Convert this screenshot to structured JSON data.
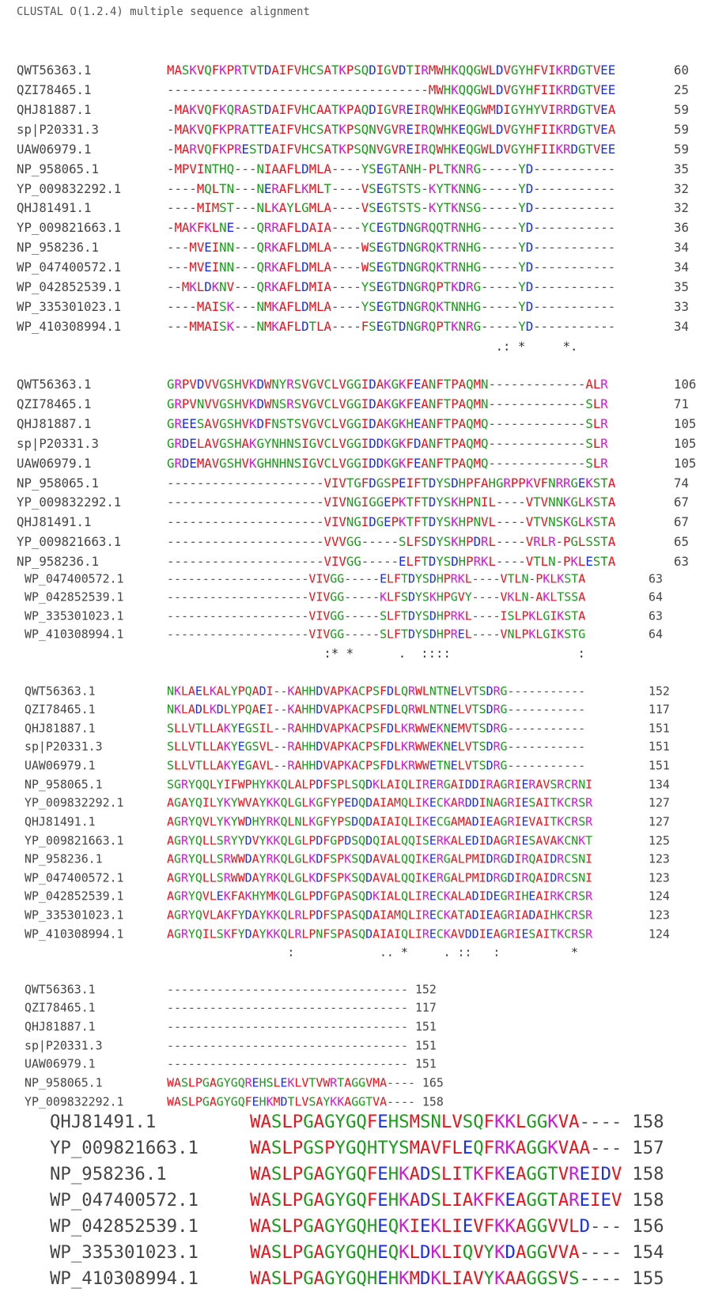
{
  "header": {
    "title": "CLUSTAL O(1.2.4) multiple sequence alignment"
  },
  "blocks": [
    {
      "rows": [
        [
          "QWT56363.1",
          "MASKVQFKPRTVTDAIFVHCSATKPSQDIGVDTIRMWHKQQGWLDVGYHFVIKRDGTVEE",
          60
        ],
        [
          "QZI78465.1",
          "-----------------------------------MWHKQQGWLDVGYHFIIKRDGTVEE",
          25
        ],
        [
          "QHJ81887.1",
          "-MAKVQFKQRASTDAIFVHCAATKPAQDIGVREIRQWHKEQGWMDIGYHYVIRRDGTVEA",
          59
        ],
        [
          "sp|P20331.3",
          "-MAKVQFKPRATTEAIFVHCSATKPSQNVGVREIRQWHKEQGWLDVGYHFIIKRDGTVEA",
          59
        ],
        [
          "UAW06979.1",
          "-MARVQFKPRESTDAIFVHCSATKPSQNVGVREIRQWHKEQGWLDVGYHFIIKRDGTVEE",
          59
        ],
        [
          "NP_958065.1",
          "-MPVINTHQ---NIAAFLDMLA----YSEGTANH-PLTKNRG-----YD-----------",
          35
        ],
        [
          "YP_009832292.1",
          "----MQLTN---NERAFLKMLT----VSEGTSTS-KYTKNNG-----YD-----------",
          32
        ],
        [
          "QHJ81491.1",
          "----MIMST---NLKAYLGMLA----VSEGTSTS-KYTKNSG-----YD-----------",
          32
        ],
        [
          "YP_009821663.1",
          "-MAKFKLNE---QRRAFLDAIA----YCEGTDNGRQQTRNHG-----YD-----------",
          36
        ],
        [
          "NP_958236.1",
          "---MVEINN---QRKAFLDMLA----WSEGTDNGRQKTRNHG-----YD-----------",
          34
        ],
        [
          "WP_047400572.1",
          "---MVEINN---QRKAFLDMLA----WSEGTDNGRQKTRNHG-----YD-----------",
          34
        ],
        [
          "WP_042852539.1",
          "--MKLDKNV---QRKAFLDMIA----YSEGTDNGRQPTKDRG-----YD-----------",
          35
        ],
        [
          "WP_335301023.1",
          "----MAISK---NMKAFLDMLA----YSEGTDNGRQKTNNHG-----YD-----------",
          33
        ],
        [
          "WP_410308994.1",
          "---MMAISK---NMKAFLDTLA----FSEGTDNGRQPTKNRG-----YD-----------",
          34
        ]
      ],
      "conservation": "                                            .: *     *.        "
    },
    {
      "rows": [
        [
          "QWT56363.1",
          "GRPVDVVGSHVKDWNYRSVGVCLVGGIDAKGKFEANFTPAQMN-------------ALR",
          106
        ],
        [
          "QZI78465.1",
          "GRPVNVVGSHVKDWNSRSVGVCLVGGIDAKGKFEANFTPAQMN-------------SLR",
          71
        ],
        [
          "QHJ81887.1",
          "GREESAVGSHVKDFNSTSVGVCLVGGIDAKGKHEANFTPAQMQ-------------SLR",
          105
        ],
        [
          "sp|P20331.3",
          "GRDELAVGSHAKGYNHNSIGVCLVGGIDDKGKFDANFTPAQMQ-------------SLR",
          105
        ],
        [
          "UAW06979.1",
          "GRDEMAVGSHVKGHNHNSIGVCLVGGIDDKGKFEANFTPAQMQ-------------SLR",
          105
        ],
        [
          "NP_958065.1",
          "---------------------VIVTGFDGSPEIFTDYSDHPFAHGRPPKVFNRRGEKSTA",
          74
        ],
        [
          "YP_009832292.1",
          "---------------------VIVNGIGGEPKTFTDYSKHPNIL----VTVNNKGLKSTA",
          67
        ],
        [
          "QHJ81491.1",
          "---------------------VIVNGIDGEPKTFTDYSKHPNVL----VTVNSKGLKSTA",
          67
        ],
        [
          "YP_009821663.1",
          "---------------------VVVGG-----SLFSDYSKHPDRL----VRLR-PGLSSTA",
          65
        ],
        [
          "NP_958236.1",
          "---------------------VIVGG-----ELFTDYSDHPRKL----VTLN-PKLESTA",
          63
        ],
        [
          "WP_047400572.1",
          "--------------------VIVGG-----ELFTDYSDHPRKL----VTLN-PKLKSTA",
          63
        ],
        [
          "WP_042852539.1",
          "--------------------VIVGG-----KLFSDYSKHPGVY----VKLN-AKLTSSA",
          64
        ],
        [
          "WP_335301023.1",
          "--------------------VIVGG-----SLFTDYSDHPRKL----ISLPKLGIKSTA",
          63
        ],
        [
          "WP_410308994.1",
          "--------------------VIVGG-----SLFTDYSDHPREL----VNLPKLGIKSTG",
          64
        ]
      ],
      "conservation": "                     :* *      .  ::::                 :   "
    },
    {
      "rows": [
        [
          "QWT56363.1",
          "NKLAELKALYPQADI--KAHHDVAPKACPSFDLQRWLNTNELVTSDRG-----------",
          152
        ],
        [
          "QZI78465.1",
          "NKLADLKDLYPQAEI--KAHHDVAPKACPSFDLQRWLNTNELVTSDRG-----------",
          117
        ],
        [
          "QHJ81887.1",
          "SLLVTLLAKYEGSIL--RAHHDVAPKACPSFDLKRWWEKNEMVTSDRG-----------",
          151
        ],
        [
          "sp|P20331.3",
          "SLLVTLLAKYEGSVL--RAHHDVAPKACPSFDLKRWWEKNELVTSDRG-----------",
          151
        ],
        [
          "UAW06979.1",
          "SLLVTLLAKYEGAVL--RAHHDVAPKACPSFDLKRWWETNELVTSDRG-----------",
          151
        ],
        [
          "NP_958065.1",
          "SGRYQQLYIFWPHYKKQLALPDFSPLSQDKLAIQLIRERGAIDDIRAGRIERAVSRCRNI",
          134
        ],
        [
          "YP_009832292.1",
          "AGAYQILYKYWVAYKKQLGLKGFYPEDQDAIAMQLIKECKARDDINAGRIESAITKCRSR",
          127
        ],
        [
          "QHJ81491.1",
          "AGRYQVLYKYWDHYRKQLNLKGFYPSDQDAIAIQLIKECGAMADIEAGRIEVAITKCRSR",
          127
        ],
        [
          "YP_009821663.1",
          "AGRYQLLSRYYDVYKKQLGLPDFGPDSQDQIALQQISERKALEDIDAGRIESAVAKCNKT",
          125
        ],
        [
          "NP_958236.1",
          "AGRYQLLSRWWDAYRKQLGLKDFSPKSQDAVALQQIKERGALPMIDRGDIRQAIDRCSNI",
          123
        ],
        [
          "WP_047400572.1",
          "AGRYQLLSRWWDAYRKQLGLKDFSPKSQDAVALQQIKERGALPMIDRGDIRQAIDRCSNI",
          123
        ],
        [
          "WP_042852539.1",
          "AGRYQVLEKFAKHYMKQLGLPDFGPASQDKIALQLIRECKALADIDEGRIHEAIRKCRSR",
          124
        ],
        [
          "WP_335301023.1",
          "AGRYQVLAKFYDAYKKQLRLPDFSPASQDAIAMQLIRECKATADIEAGRIADAIHKCRSR",
          123
        ],
        [
          "WP_410308994.1",
          "AGRYQILSKFYDAYKKQLRLPNFSPASQDAIAIQLIRECKAVDDIEAGRIESAITKCRSR",
          124
        ]
      ],
      "conservation": "                 :            .. *     . ::   :          *  "
    },
    {
      "rows": [
        [
          "QWT56363.1",
          "----------------------------------",
          152
        ],
        [
          "QZI78465.1",
          "----------------------------------",
          117
        ],
        [
          "QHJ81887.1",
          "----------------------------------",
          151
        ],
        [
          "sp|P20331.3",
          "----------------------------------",
          151
        ],
        [
          "UAW06979.1",
          "----------------------------------",
          151
        ],
        [
          "NP_958065.1",
          "WASLPGAGYGQREHSLEKLVTVWRTAGGVMA----",
          165
        ],
        [
          "YP_009832292.1",
          "WASLPGAGYGQFEHKMDTLVSAYKKAGGTVA----",
          158
        ],
        [
          "QHJ81491.1",
          "WASLPGAGYGQFEHSMSNLVSQFKKLGGKVA----",
          158
        ],
        [
          "YP_009821663.1",
          "WASLPGSPYGQHTYSMAVFLEQFRKAGGKVAA---",
          157
        ],
        [
          "NP_958236.1",
          "WASLPGAGYGQFEHKADSLITKFKEAGGTVREIDV",
          158
        ],
        [
          "WP_047400572.1",
          "WASLPGAGYGQFEHKADSLIAKFKEAGGTAREIEV",
          158
        ],
        [
          "WP_042852539.1",
          "WASLPGAGYGQHEQKIEKLIEVFKKAGGVVLD---",
          156
        ],
        [
          "WP_335301023.1",
          "WASLPGAGYGQHEQKLDKLIQVYKDAGGVVA----",
          154
        ],
        [
          "WP_410308994.1",
          "WASLPGAGYGQHEHKMDKLIAVYKAAGGSVS----",
          155
        ]
      ]
    }
  ]
}
